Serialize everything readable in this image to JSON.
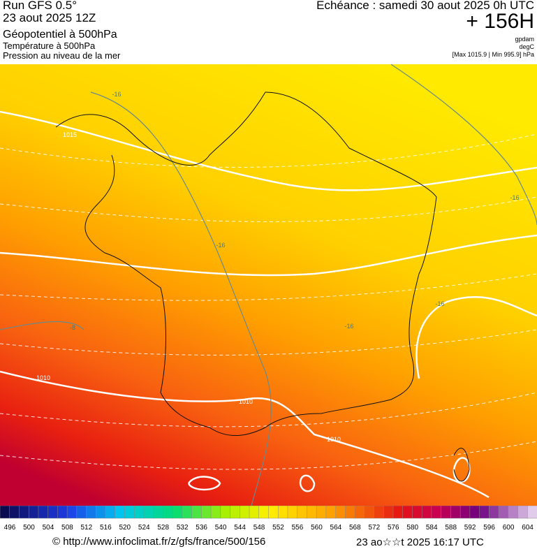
{
  "header": {
    "run": "Run GFS 0.5°",
    "date": "23 aout 2025 12Z",
    "field": "Géopotentiel à 500hPa",
    "field2": "Température à 500hPa",
    "field3": "Pression au niveau de la mer",
    "echeance": "Echéance : samedi 30 aout 2025 0h UTC",
    "lead": "+ 156H",
    "unit1": "gpdam",
    "unit2": "degC",
    "range": "[Max 1015.9 | Min 995.9] hPa"
  },
  "contour_labels": [
    "-16",
    "1015",
    "-16",
    "-16",
    "-16",
    "-16",
    "1010",
    "1010",
    "1010",
    "-8"
  ],
  "colorbar": {
    "labels": [
      "496",
      "500",
      "504",
      "508",
      "512",
      "516",
      "520",
      "524",
      "528",
      "532",
      "536",
      "540",
      "544",
      "548",
      "552",
      "556",
      "560",
      "564",
      "568",
      "572",
      "576",
      "580",
      "584",
      "588",
      "592",
      "596",
      "600",
      "604"
    ]
  },
  "footer": {
    "url": "© http://www.infoclimat.fr/z/gfs/france/500/156",
    "timestamp": "23 ao☆☆t 2025 16:17 UTC"
  }
}
